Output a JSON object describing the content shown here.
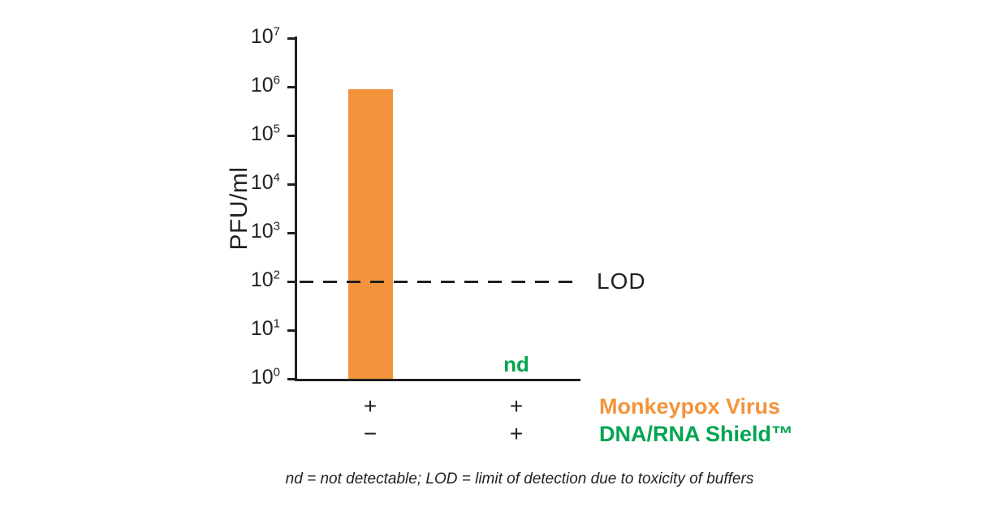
{
  "chart_data": {
    "type": "bar",
    "title": "",
    "ylabel": "PFU/ml",
    "y_scale": "log",
    "ylim": [
      1,
      10000000
    ],
    "y_exponent_range": [
      0,
      7
    ],
    "y_tick_base": "10",
    "categories": [
      "Monkeypox Virus alone",
      "Monkeypox Virus + DNA/RNA Shield"
    ],
    "values": [
      900000,
      null
    ],
    "nd_label": "nd",
    "lod": {
      "value": 100,
      "label": "LOD"
    },
    "colors": {
      "bar": "#F3943C",
      "nd_green": "#00A550",
      "axis": "#231F20",
      "text": "#231F20"
    },
    "condition_rows": [
      {
        "label": "Monkeypox Virus",
        "color": "#F3943C",
        "signs": [
          "+",
          "+"
        ]
      },
      {
        "label": "DNA/RNA Shield™",
        "color": "#00A550",
        "signs": [
          "−",
          "+"
        ]
      }
    ],
    "footnote": "nd = not detectable; LOD = limit of detection due to toxicity of buffers"
  }
}
